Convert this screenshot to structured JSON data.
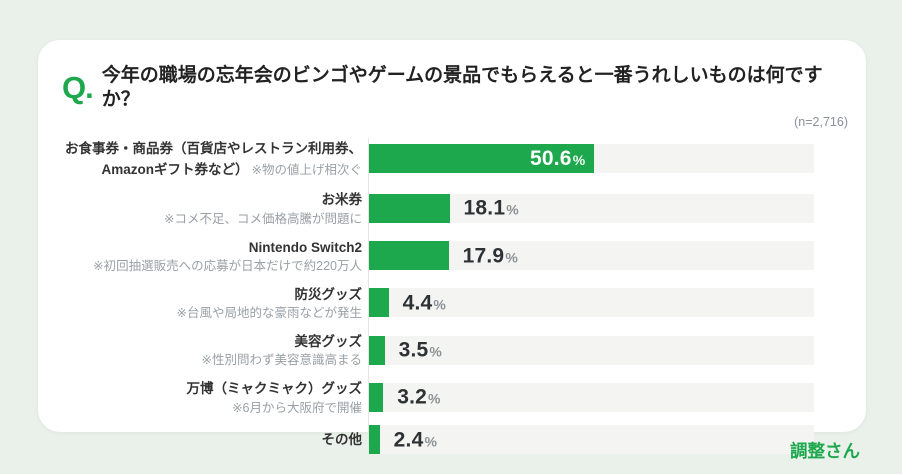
{
  "page": {
    "background_color": "#e9f1ea",
    "accent_color": "#1ea84e"
  },
  "header": {
    "q_mark": "Q.",
    "title": "今年の職場の忘年会のビンゴやゲームの景品でもらえると一番うれしいものは何ですか？",
    "sample_size": "(n=2,716)"
  },
  "footer": {
    "logo": "調整さん"
  },
  "chart_data": {
    "type": "bar",
    "orientation": "horizontal",
    "title": "今年の職場の忘年会のビンゴやゲームの景品でもらえると一番うれしいものは何ですか？",
    "sample_size": "(n=2,716)",
    "categories": [
      "お食事券・商品券（百貨店やレストラン利用券、Amazonギフト券など）",
      "お米券",
      "Nintendo Switch2",
      "防災グッズ",
      "美容グッズ",
      "万博（ミャクミャク）グッズ",
      "その他"
    ],
    "notes": [
      "※物の値上げ相次ぐ",
      "※コメ不足、コメ価格高騰が問題に",
      "※初回抽選販売への応募が日本だけで約220万人",
      "※台風や局地的な豪雨などが発生",
      "※性別問わず美容意識高まる",
      "※6月から大阪府で開催",
      ""
    ],
    "notes_inline": [
      true,
      false,
      false,
      false,
      false,
      false,
      false
    ],
    "values": [
      50.6,
      18.1,
      17.9,
      4.4,
      3.5,
      3.2,
      2.4
    ],
    "value_suffix": "%",
    "xlim": [
      0,
      100
    ],
    "bar_color": "#1ea84e",
    "track_color": "#f4f5f3",
    "value_inside_threshold": 30,
    "legend": false,
    "grid": false
  }
}
